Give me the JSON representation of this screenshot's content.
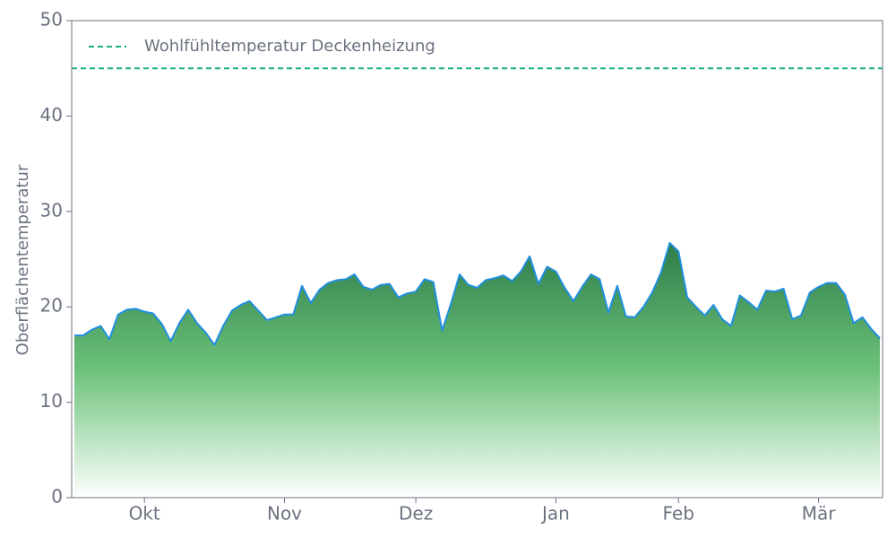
{
  "chart_data": {
    "type": "area",
    "ylabel": "Oberflächentemperatur",
    "categories": [
      null,
      null,
      null,
      null,
      null,
      null,
      null,
      null,
      "Okt",
      null,
      null,
      null,
      null,
      null,
      null,
      null,
      null,
      null,
      null,
      null,
      null,
      null,
      null,
      null,
      "Nov",
      null,
      null,
      null,
      null,
      null,
      null,
      null,
      null,
      null,
      null,
      null,
      null,
      null,
      null,
      "Dez",
      null,
      null,
      null,
      null,
      null,
      null,
      null,
      null,
      null,
      null,
      null,
      null,
      null,
      null,
      null,
      "Jan",
      null,
      null,
      null,
      null,
      null,
      null,
      null,
      null,
      null,
      null,
      null,
      null,
      null,
      "Feb",
      null,
      null,
      null,
      null,
      null,
      null,
      null,
      null,
      null,
      null,
      null,
      null,
      null,
      null,
      null,
      "Mär",
      null,
      null,
      null,
      null,
      null,
      null,
      null
    ],
    "values": [
      17,
      17,
      17.6,
      18,
      16.6,
      19.2,
      19.7,
      19.8,
      19.5,
      19.3,
      18.2,
      16.4,
      18.3,
      19.7,
      18.3,
      17.3,
      16,
      18,
      19.6,
      20.2,
      20.6,
      19.6,
      18.6,
      18.9,
      19.2,
      19.2,
      22.2,
      20.4,
      21.8,
      22.5,
      22.8,
      22.9,
      23.4,
      22.1,
      21.8,
      22.3,
      22.4,
      21,
      21.4,
      21.6,
      22.9,
      22.6,
      17.5,
      20.3,
      23.4,
      22.3,
      22,
      22.8,
      23,
      23.3,
      22.7,
      23.7,
      25.3,
      22.4,
      24.2,
      23.7,
      22,
      20.6,
      22.1,
      23.4,
      22.9,
      19.4,
      22.2,
      19,
      18.9,
      20,
      21.5,
      23.6,
      26.7,
      25.8,
      21,
      20,
      19.1,
      20.2,
      18.7,
      18,
      21.2,
      20.5,
      19.7,
      21.7,
      21.6,
      21.9,
      18.7,
      19.1,
      21.5,
      22.1,
      22.5,
      22.5,
      21.3,
      18.3,
      18.9,
      17.7,
      16.7
    ],
    "line_color": "#1f8fe0",
    "fill_top_color": "#2e7d4a",
    "fill_mid_color": "#6cc27a",
    "ylim": [
      0,
      50
    ],
    "yticks": [
      0,
      10,
      20,
      30,
      40,
      50
    ],
    "hlines": [
      {
        "value": 45,
        "label": "Wohlfühltemperatur Deckenheizung",
        "color": "#1aaf85"
      }
    ],
    "legend": "upper left"
  }
}
